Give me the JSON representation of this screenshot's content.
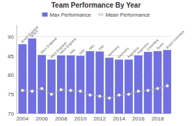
{
  "chart_data": {
    "type": "bar",
    "title": "Team Performance By Year",
    "categories": [
      "2004",
      null,
      "2006",
      null,
      "2008",
      null,
      "2010",
      null,
      "2012",
      null,
      "2014",
      null,
      "2016",
      null,
      "2018",
      null
    ],
    "series": [
      {
        "name": "Max Performance",
        "type": "bar",
        "color": "#7070e0",
        "values": [
          88.0,
          89.5,
          85.2,
          84.0,
          85.1,
          85.1,
          85.0,
          86.2,
          86.1,
          84.5,
          84.0,
          84.0,
          85.1,
          86.0,
          86.2,
          86.5
        ]
      },
      {
        "name": "Mean Performance",
        "type": "line",
        "color": "#aaaaaa",
        "marker": "circle",
        "values": [
          76.0,
          75.8,
          76.5,
          75.0,
          76.2,
          76.0,
          75.8,
          74.8,
          74.5,
          74.0,
          74.8,
          75.0,
          75.8,
          76.0,
          76.5,
          77.2
        ]
      }
    ],
    "annotations": [
      "Brazil England",
      "Brazil",
      "West England",
      "West England",
      "West England",
      "Italy",
      "Italy",
      "Italy",
      "Italy",
      "Germany",
      "Germany",
      "Argentina",
      "Argentina",
      "Colombia",
      "Spain",
      "Brazil Colombia"
    ],
    "ylim": [
      70,
      93
    ],
    "yticks": [
      70,
      75,
      80,
      85,
      90
    ],
    "grid": true,
    "legend": "top"
  }
}
